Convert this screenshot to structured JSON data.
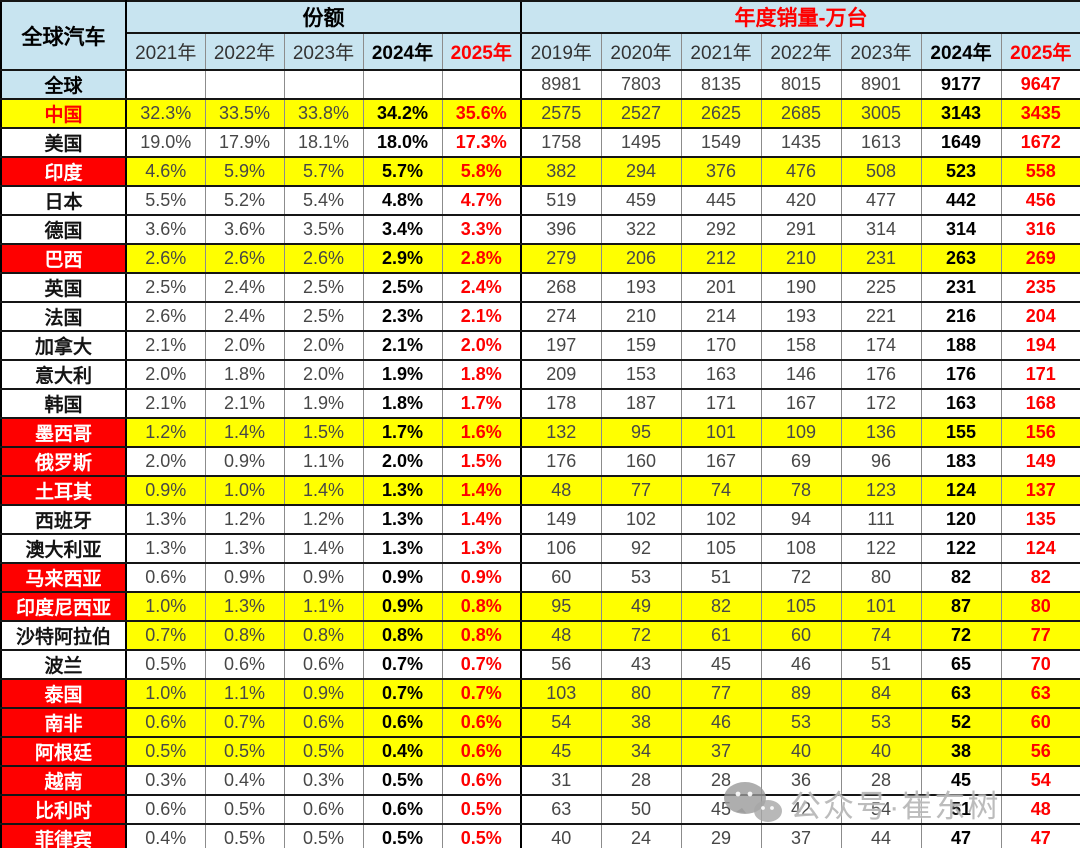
{
  "header": {
    "corner": "全球汽车",
    "share_group": "份额",
    "sales_group": "年度销量-万台"
  },
  "watermark": {
    "icon": "wechat-icon",
    "text": "公众号·崔东树"
  },
  "colors": {
    "header_blue": "#C8E4F0",
    "highlight_yellow": "#FFFF00",
    "alert_red": "#FE0000",
    "regular_text": "#474747",
    "border_dark": "#151515",
    "border_gray": "#8C8C8C"
  },
  "chart_data": {
    "type": "table",
    "title": "全球汽车",
    "column_groups": [
      "份额",
      "年度销量-万台"
    ],
    "share_columns": [
      "2021年",
      "2022年",
      "2023年",
      "2024年",
      "2025年"
    ],
    "sales_columns": [
      "2019年",
      "2020年",
      "2021年",
      "2022年",
      "2023年",
      "2024年",
      "2025年"
    ],
    "emphasis": {
      "share_bold_column": "2024年",
      "share_red_column": "2025年",
      "sales_bold_column": "2024年",
      "sales_red_column": "2025年"
    },
    "rows": [
      {
        "region": "全球",
        "hdr": "blue",
        "bg": "white",
        "share": [
          "",
          "",
          "",
          "",
          ""
        ],
        "sales": [
          "8981",
          "7803",
          "8135",
          "8015",
          "8901",
          "9177",
          "9647"
        ]
      },
      {
        "region": "中国",
        "hdr": "yellow",
        "bg": "yellow",
        "share": [
          "32.3%",
          "33.5%",
          "33.8%",
          "34.2%",
          "35.6%"
        ],
        "sales": [
          "2575",
          "2527",
          "2625",
          "2685",
          "3005",
          "3143",
          "3435"
        ]
      },
      {
        "region": "美国",
        "hdr": "white",
        "bg": "white",
        "share": [
          "19.0%",
          "17.9%",
          "18.1%",
          "18.0%",
          "17.3%"
        ],
        "sales": [
          "1758",
          "1495",
          "1549",
          "1435",
          "1613",
          "1649",
          "1672"
        ]
      },
      {
        "region": "印度",
        "hdr": "red",
        "bg": "yellow",
        "share": [
          "4.6%",
          "5.9%",
          "5.7%",
          "5.7%",
          "5.8%"
        ],
        "sales": [
          "382",
          "294",
          "376",
          "476",
          "508",
          "523",
          "558"
        ]
      },
      {
        "region": "日本",
        "hdr": "white",
        "bg": "white",
        "share": [
          "5.5%",
          "5.2%",
          "5.4%",
          "4.8%",
          "4.7%"
        ],
        "sales": [
          "519",
          "459",
          "445",
          "420",
          "477",
          "442",
          "456"
        ]
      },
      {
        "region": "德国",
        "hdr": "white",
        "bg": "white",
        "share": [
          "3.6%",
          "3.6%",
          "3.5%",
          "3.4%",
          "3.3%"
        ],
        "sales": [
          "396",
          "322",
          "292",
          "291",
          "314",
          "314",
          "316"
        ]
      },
      {
        "region": "巴西",
        "hdr": "red",
        "bg": "yellow",
        "share": [
          "2.6%",
          "2.6%",
          "2.6%",
          "2.9%",
          "2.8%"
        ],
        "sales": [
          "279",
          "206",
          "212",
          "210",
          "231",
          "263",
          "269"
        ]
      },
      {
        "region": "英国",
        "hdr": "white",
        "bg": "white",
        "share": [
          "2.5%",
          "2.4%",
          "2.5%",
          "2.5%",
          "2.4%"
        ],
        "sales": [
          "268",
          "193",
          "201",
          "190",
          "225",
          "231",
          "235"
        ]
      },
      {
        "region": "法国",
        "hdr": "white",
        "bg": "white",
        "share": [
          "2.6%",
          "2.4%",
          "2.5%",
          "2.3%",
          "2.1%"
        ],
        "sales": [
          "274",
          "210",
          "214",
          "193",
          "221",
          "216",
          "204"
        ]
      },
      {
        "region": "加拿大",
        "hdr": "white",
        "bg": "white",
        "share": [
          "2.1%",
          "2.0%",
          "2.0%",
          "2.1%",
          "2.0%"
        ],
        "sales": [
          "197",
          "159",
          "170",
          "158",
          "174",
          "188",
          "194"
        ]
      },
      {
        "region": "意大利",
        "hdr": "white",
        "bg": "white",
        "share": [
          "2.0%",
          "1.8%",
          "2.0%",
          "1.9%",
          "1.8%"
        ],
        "sales": [
          "209",
          "153",
          "163",
          "146",
          "176",
          "176",
          "171"
        ]
      },
      {
        "region": "韩国",
        "hdr": "white",
        "bg": "white",
        "share": [
          "2.1%",
          "2.1%",
          "1.9%",
          "1.8%",
          "1.7%"
        ],
        "sales": [
          "178",
          "187",
          "171",
          "167",
          "172",
          "163",
          "168"
        ]
      },
      {
        "region": "墨西哥",
        "hdr": "red",
        "bg": "yellow",
        "share": [
          "1.2%",
          "1.4%",
          "1.5%",
          "1.7%",
          "1.6%"
        ],
        "sales": [
          "132",
          "95",
          "101",
          "109",
          "136",
          "155",
          "156"
        ]
      },
      {
        "region": "俄罗斯",
        "hdr": "red",
        "bg": "white",
        "share": [
          "2.0%",
          "0.9%",
          "1.1%",
          "2.0%",
          "1.5%"
        ],
        "sales": [
          "176",
          "160",
          "167",
          "69",
          "96",
          "183",
          "149"
        ]
      },
      {
        "region": "土耳其",
        "hdr": "red",
        "bg": "yellow",
        "share": [
          "0.9%",
          "1.0%",
          "1.4%",
          "1.3%",
          "1.4%"
        ],
        "sales": [
          "48",
          "77",
          "74",
          "78",
          "123",
          "124",
          "137"
        ]
      },
      {
        "region": "西班牙",
        "hdr": "white",
        "bg": "white",
        "share": [
          "1.3%",
          "1.2%",
          "1.2%",
          "1.3%",
          "1.4%"
        ],
        "sales": [
          "149",
          "102",
          "102",
          "94",
          "111",
          "120",
          "135"
        ]
      },
      {
        "region": "澳大利亚",
        "hdr": "white",
        "bg": "white",
        "share": [
          "1.3%",
          "1.3%",
          "1.4%",
          "1.3%",
          "1.3%"
        ],
        "sales": [
          "106",
          "92",
          "105",
          "108",
          "122",
          "122",
          "124"
        ]
      },
      {
        "region": "马来西亚",
        "hdr": "red",
        "bg": "white",
        "share": [
          "0.6%",
          "0.9%",
          "0.9%",
          "0.9%",
          "0.9%"
        ],
        "sales": [
          "60",
          "53",
          "51",
          "72",
          "80",
          "82",
          "82"
        ]
      },
      {
        "region": "印度尼西亚",
        "hdr": "red",
        "bg": "yellow",
        "share": [
          "1.0%",
          "1.3%",
          "1.1%",
          "0.9%",
          "0.8%"
        ],
        "sales": [
          "95",
          "49",
          "82",
          "105",
          "101",
          "87",
          "80"
        ]
      },
      {
        "region": "沙特阿拉伯",
        "hdr": "white",
        "bg": "yellow",
        "share": [
          "0.7%",
          "0.8%",
          "0.8%",
          "0.8%",
          "0.8%"
        ],
        "sales": [
          "48",
          "72",
          "61",
          "60",
          "74",
          "72",
          "77"
        ]
      },
      {
        "region": "波兰",
        "hdr": "white",
        "bg": "white",
        "share": [
          "0.5%",
          "0.6%",
          "0.6%",
          "0.7%",
          "0.7%"
        ],
        "sales": [
          "56",
          "43",
          "45",
          "46",
          "51",
          "65",
          "70"
        ]
      },
      {
        "region": "泰国",
        "hdr": "red",
        "bg": "yellow",
        "share": [
          "1.0%",
          "1.1%",
          "0.9%",
          "0.7%",
          "0.7%"
        ],
        "sales": [
          "103",
          "80",
          "77",
          "89",
          "84",
          "63",
          "63"
        ]
      },
      {
        "region": "南非",
        "hdr": "red",
        "bg": "yellow",
        "share": [
          "0.6%",
          "0.7%",
          "0.6%",
          "0.6%",
          "0.6%"
        ],
        "sales": [
          "54",
          "38",
          "46",
          "53",
          "53",
          "52",
          "60"
        ]
      },
      {
        "region": "阿根廷",
        "hdr": "red",
        "bg": "yellow",
        "share": [
          "0.5%",
          "0.5%",
          "0.5%",
          "0.4%",
          "0.6%"
        ],
        "sales": [
          "45",
          "34",
          "37",
          "40",
          "40",
          "38",
          "56"
        ]
      },
      {
        "region": "越南",
        "hdr": "red",
        "bg": "white",
        "share": [
          "0.3%",
          "0.4%",
          "0.3%",
          "0.5%",
          "0.6%"
        ],
        "sales": [
          "31",
          "28",
          "28",
          "36",
          "28",
          "45",
          "54"
        ]
      },
      {
        "region": "比利时",
        "hdr": "red",
        "bg": "white",
        "share": [
          "0.6%",
          "0.5%",
          "0.6%",
          "0.6%",
          "0.5%"
        ],
        "sales": [
          "63",
          "50",
          "45",
          "42",
          "54",
          "51",
          "48"
        ]
      },
      {
        "region": "菲律宾",
        "hdr": "red",
        "bg": "white",
        "share": [
          "0.4%",
          "0.5%",
          "0.5%",
          "0.5%",
          "0.5%"
        ],
        "sales": [
          "40",
          "24",
          "29",
          "37",
          "44",
          "47",
          "47"
        ]
      }
    ]
  }
}
